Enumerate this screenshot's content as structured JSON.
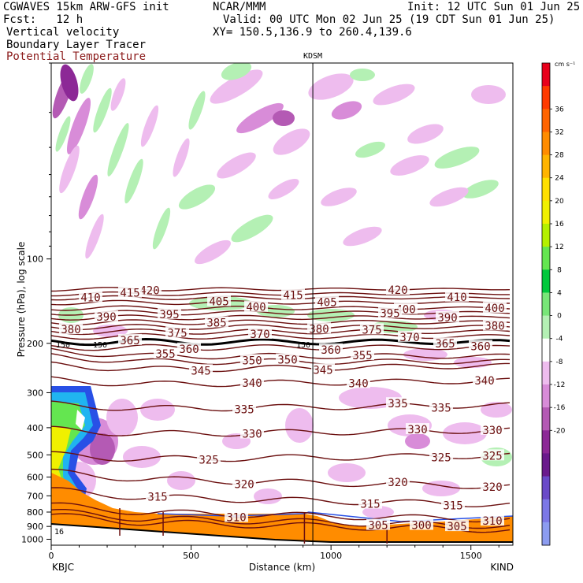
{
  "header": {
    "model": "CGWAVES 15km ARW-GFS init",
    "center": "NCAR/MMM",
    "init": "Init: 12 UTC Sun 01 Jun 25",
    "fcst": "Fcst:   12 h",
    "valid": "Valid: 00 UTC Mon 02 Jun 25 (19 CDT Sun 01 Jun 25)",
    "field1": "Vertical velocity",
    "field2": "Boundary Layer Tracer",
    "field3": "Potential Temperature",
    "xy": "XY= 150.5,136.9 to 260.4,139.6"
  },
  "colors": {
    "theta_line": "#6b0f0f",
    "terrain": "#ff8c00",
    "cross_line": "#000000"
  },
  "chart_data": {
    "type": "heatmap",
    "title": "KDSM",
    "xlabel": "Distance (km)",
    "ylabel": "Pressure (hPa), log scale",
    "x_ticks": [
      0,
      500,
      1000,
      1500
    ],
    "xlim": [
      0,
      1650
    ],
    "y_ticks": [
      100,
      200,
      300,
      400,
      500,
      600,
      700,
      800,
      900,
      1000
    ],
    "ylim": [
      1050,
      20
    ],
    "y_scale": "log",
    "x_endpoints": {
      "left": "KBJC",
      "right": "KIND"
    },
    "marker_station": "KDSM",
    "marker_distance_km": 935,
    "colorbar": {
      "unit_label": "cm s⁻¹",
      "levels": [
        36,
        32,
        28,
        24,
        20,
        16,
        12,
        8,
        4,
        0,
        -4,
        -8,
        -12,
        -16,
        -20
      ],
      "colors": [
        "#e8001c",
        "#ff3a00",
        "#ff6400",
        "#ff8c00",
        "#ffb400",
        "#ffe000",
        "#f0f000",
        "#b4f000",
        "#64e650",
        "#00c83c",
        "#78e678",
        "#b4f0b4",
        "#ffffff",
        "#eebcee",
        "#d88cd8",
        "#b45ab4",
        "#8c2896",
        "#6a1a8c",
        "#6a4ac8",
        "#7c78e6",
        "#8c9cf0"
      ]
    },
    "theta_contours": [
      {
        "value": 420,
        "label_x": [
          190,
          505
        ]
      },
      {
        "value": 415,
        "label_x": [
          165,
          372
        ]
      },
      {
        "value": 410,
        "label_x": [
          115,
          580
        ]
      },
      {
        "value": 405,
        "label_x": [
          278,
          415
        ]
      },
      {
        "value": 400,
        "label_x": [
          325,
          515,
          628
        ]
      },
      {
        "value": 395,
        "label_x": [
          215,
          495
        ]
      },
      {
        "value": 390,
        "label_x": [
          135,
          568
        ]
      },
      {
        "value": 385,
        "label_x": [
          275
        ]
      },
      {
        "value": 380,
        "label_x": [
          90,
          405,
          628
        ]
      },
      {
        "value": 375,
        "label_x": [
          225,
          472
        ]
      },
      {
        "value": 370,
        "label_x": [
          330,
          520
        ]
      },
      {
        "value": 365,
        "label_x": [
          165,
          565
        ]
      },
      {
        "value": 360,
        "label_x": [
          240,
          420,
          610
        ]
      },
      {
        "value": 355,
        "label_x": [
          210,
          460
        ]
      },
      {
        "value": 350,
        "label_x": [
          320,
          365
        ]
      },
      {
        "value": 345,
        "label_x": [
          255,
          410
        ]
      },
      {
        "value": 340,
        "label_x": [
          320,
          455,
          615
        ]
      },
      {
        "value": 335,
        "label_x": [
          310,
          505,
          560
        ]
      },
      {
        "value": 330,
        "label_x": [
          320,
          530,
          625
        ]
      },
      {
        "value": 325,
        "label_x": [
          265,
          560,
          625
        ]
      },
      {
        "value": 320,
        "label_x": [
          310,
          505,
          625
        ]
      },
      {
        "value": 315,
        "label_x": [
          200,
          470,
          575
        ]
      },
      {
        "value": 310,
        "label_x": [
          300,
          625
        ]
      },
      {
        "value": 305,
        "label_x": [
          480,
          580
        ]
      },
      {
        "value": 300,
        "label_x": [
          535
        ]
      }
    ],
    "annotations": [
      "150",
      "150",
      "150",
      "16"
    ]
  }
}
